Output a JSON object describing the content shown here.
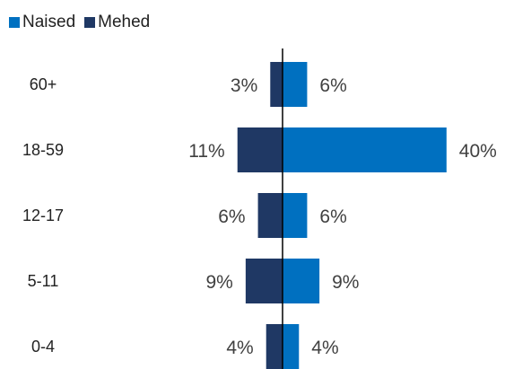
{
  "chart_data": {
    "type": "bar",
    "orientation": "horizontal-butterfly",
    "categories": [
      "60+",
      "18-59",
      "12-17",
      "5-11",
      "0-4"
    ],
    "series": [
      {
        "name": "Naised",
        "values": [
          6,
          40,
          6,
          9,
          4
        ],
        "labels": [
          "6%",
          "40%",
          "6%",
          "9%",
          "4%"
        ],
        "color": "#0070c0",
        "side": "right"
      },
      {
        "name": "Mehed",
        "values": [
          3,
          11,
          6,
          9,
          4
        ],
        "labels": [
          "3%",
          "11%",
          "6%",
          "9%",
          "4%"
        ],
        "color": "#1f3864",
        "side": "left"
      }
    ],
    "unit": "%",
    "legend_position": "top-left",
    "grid": false
  },
  "legend": {
    "naised": "Naised",
    "mehed": "Mehed"
  }
}
